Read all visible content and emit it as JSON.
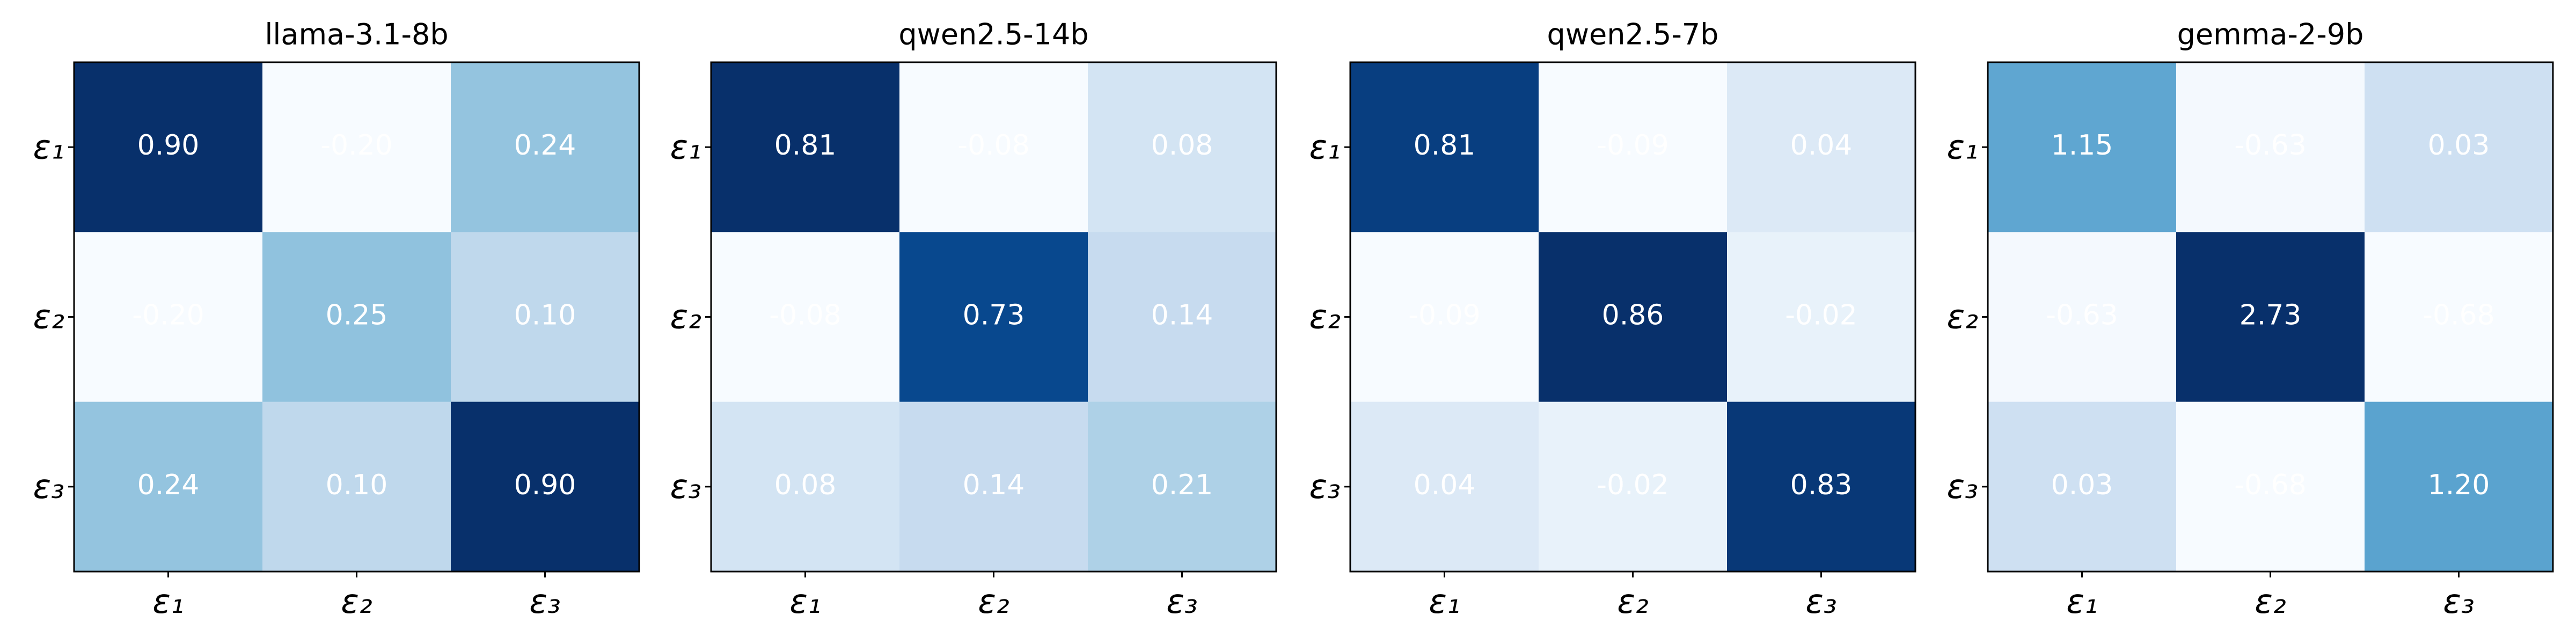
{
  "chart_data": [
    {
      "type": "heatmap",
      "title": "llama-3.1-8b",
      "colormap": "Blues",
      "x_categories": [
        "ε₁",
        "ε₂",
        "ε₃"
      ],
      "y_categories": [
        "ε₁",
        "ε₂",
        "ε₃"
      ],
      "values": [
        [
          0.9,
          -0.2,
          0.24
        ],
        [
          -0.2,
          0.25,
          0.1
        ],
        [
          0.24,
          0.1,
          0.9
        ]
      ],
      "value_labels": [
        [
          "0.90",
          "-0.20",
          "0.24"
        ],
        [
          "-0.20",
          "0.25",
          "0.10"
        ],
        [
          "0.24",
          "0.10",
          "0.90"
        ]
      ]
    },
    {
      "type": "heatmap",
      "title": "qwen2.5-14b",
      "colormap": "Blues",
      "x_categories": [
        "ε₁",
        "ε₂",
        "ε₃"
      ],
      "y_categories": [
        "ε₁",
        "ε₂",
        "ε₃"
      ],
      "values": [
        [
          0.81,
          -0.08,
          0.08
        ],
        [
          -0.08,
          0.73,
          0.14
        ],
        [
          0.08,
          0.14,
          0.21
        ]
      ],
      "value_labels": [
        [
          "0.81",
          "-0.08",
          "0.08"
        ],
        [
          "-0.08",
          "0.73",
          "0.14"
        ],
        [
          "0.08",
          "0.14",
          "0.21"
        ]
      ]
    },
    {
      "type": "heatmap",
      "title": "qwen2.5-7b",
      "colormap": "Blues",
      "x_categories": [
        "ε₁",
        "ε₂",
        "ε₃"
      ],
      "y_categories": [
        "ε₁",
        "ε₂",
        "ε₃"
      ],
      "values": [
        [
          0.81,
          -0.09,
          0.04
        ],
        [
          -0.09,
          0.86,
          -0.02
        ],
        [
          0.04,
          -0.02,
          0.83
        ]
      ],
      "value_labels": [
        [
          "0.81",
          "-0.09",
          "0.04"
        ],
        [
          "-0.09",
          "0.86",
          "-0.02"
        ],
        [
          "0.04",
          "-0.02",
          "0.83"
        ]
      ]
    },
    {
      "type": "heatmap",
      "title": "gemma-2-9b",
      "colormap": "Blues",
      "x_categories": [
        "ε₁",
        "ε₂",
        "ε₃"
      ],
      "y_categories": [
        "ε₁",
        "ε₂",
        "ε₃"
      ],
      "values": [
        [
          1.15,
          -0.63,
          0.03
        ],
        [
          -0.63,
          2.73,
          -0.68
        ],
        [
          0.03,
          -0.68,
          1.2
        ]
      ],
      "value_labels": [
        [
          "1.15",
          "-0.63",
          "0.03"
        ],
        [
          "-0.63",
          "2.73",
          "-0.68"
        ],
        [
          "0.03",
          "-0.68",
          "1.20"
        ]
      ]
    }
  ]
}
